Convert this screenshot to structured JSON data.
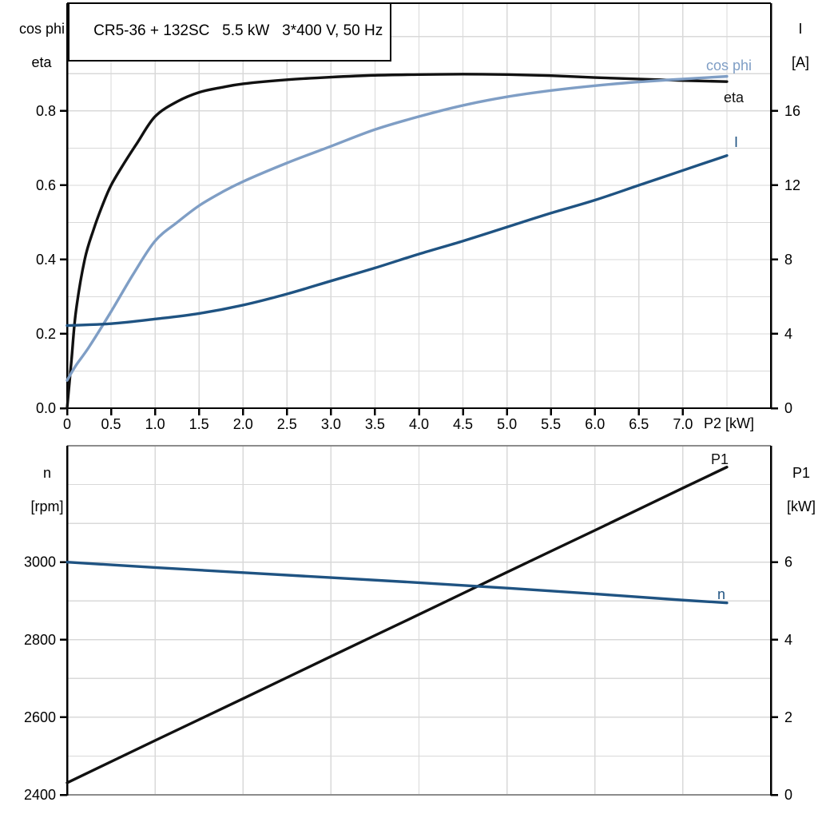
{
  "colors": {
    "black_curve": "#111111",
    "dark_blue": "#1f5382",
    "light_blue": "#7f9ec5",
    "grid": "#d9d9d9",
    "gray_frame": "#8c8c8c",
    "axis": "#000000"
  },
  "chart_data": [
    {
      "id": "upper",
      "type": "line",
      "title": "CR5-36 + 132SC   5.5 kW   3*400 V, 50 Hz",
      "xlabel": "P2 [kW]",
      "xlim": [
        0,
        8
      ],
      "grid_x_step": 0.5,
      "grid": true,
      "x_ticks": [
        0,
        0.5,
        1,
        1.5,
        2,
        2.5,
        3,
        3.5,
        4,
        4.5,
        5,
        5.5,
        6,
        6.5,
        7
      ],
      "x_tick_labels": [
        "0",
        "0.5",
        "1.0",
        "1.5",
        "2.0",
        "2.5",
        "3.0",
        "3.5",
        "4.0",
        "4.5",
        "5.0",
        "5.5",
        "6.0",
        "6.5",
        "7.0"
      ],
      "left_axis": {
        "header": [
          "cos phi",
          "eta"
        ],
        "lim": [
          0,
          1.09
        ],
        "grid_step": 0.1,
        "ticks": [
          0,
          0.2,
          0.4,
          0.6,
          0.8
        ],
        "tick_labels": [
          "0.0",
          "0.2",
          "0.4",
          "0.6",
          "0.8"
        ]
      },
      "right_axis": {
        "header": [
          "I",
          "[A]"
        ],
        "lim": [
          0,
          21.8
        ],
        "ticks": [
          0,
          4,
          8,
          12,
          16
        ],
        "tick_labels": [
          "0",
          "4",
          "8",
          "12",
          "16"
        ]
      },
      "series": [
        {
          "name": "eta",
          "axis": "left",
          "color_key": "black_curve",
          "x": [
            0,
            0.05,
            0.1,
            0.2,
            0.3,
            0.4,
            0.5,
            0.65,
            0.8,
            1.0,
            1.25,
            1.5,
            1.75,
            2.0,
            2.5,
            3.0,
            3.5,
            4.0,
            4.5,
            5.0,
            5.5,
            6.0,
            6.5,
            7.0,
            7.5
          ],
          "y": [
            0,
            0.13,
            0.26,
            0.4,
            0.48,
            0.545,
            0.6,
            0.66,
            0.715,
            0.785,
            0.825,
            0.85,
            0.863,
            0.873,
            0.884,
            0.891,
            0.896,
            0.898,
            0.899,
            0.898,
            0.895,
            0.89,
            0.886,
            0.882,
            0.879
          ]
        },
        {
          "name": "cos phi",
          "axis": "left",
          "color_key": "light_blue",
          "x": [
            0,
            0.1,
            0.25,
            0.5,
            0.75,
            1.0,
            1.25,
            1.5,
            1.75,
            2.0,
            2.5,
            3.0,
            3.5,
            4.0,
            4.5,
            5.0,
            5.5,
            6.0,
            6.5,
            7.0,
            7.5
          ],
          "y": [
            0.075,
            0.115,
            0.165,
            0.26,
            0.36,
            0.45,
            0.5,
            0.545,
            0.58,
            0.61,
            0.66,
            0.705,
            0.75,
            0.785,
            0.815,
            0.838,
            0.855,
            0.868,
            0.878,
            0.886,
            0.893
          ]
        },
        {
          "name": "I",
          "axis": "right",
          "color_key": "dark_blue",
          "x": [
            0,
            0.5,
            1.0,
            1.5,
            2.0,
            2.5,
            3.0,
            3.5,
            4.0,
            4.5,
            5.0,
            5.5,
            6.0,
            6.5,
            7.0,
            7.5
          ],
          "y": [
            4.45,
            4.55,
            4.8,
            5.1,
            5.55,
            6.15,
            6.85,
            7.55,
            8.3,
            9.0,
            9.75,
            10.5,
            11.2,
            12.0,
            12.8,
            13.6
          ]
        }
      ],
      "curve_labels": [
        {
          "text": "cos phi",
          "color_key": "light_blue",
          "x": 884,
          "y": 88
        },
        {
          "text": "eta",
          "color_key": "black_curve",
          "x": 906,
          "y": 128
        },
        {
          "text": "I",
          "color_key": "dark_blue",
          "x": 919,
          "y": 184
        }
      ]
    },
    {
      "id": "lower",
      "type": "line",
      "title": "",
      "xlabel": "",
      "xlim": [
        0,
        8
      ],
      "grid_x_step": 1.0,
      "grid": true,
      "x_ticks": [],
      "x_tick_labels": [],
      "left_axis": {
        "header": [
          "n",
          "[rpm]"
        ],
        "lim": [
          2400,
          3300
        ],
        "grid_step": 100,
        "ticks": [
          2400,
          2600,
          2800,
          3000
        ],
        "tick_labels": [
          "2400",
          "2600",
          "2800",
          "3000"
        ]
      },
      "right_axis": {
        "header": [
          "P1",
          "[kW]"
        ],
        "lim": [
          0,
          9
        ],
        "ticks": [
          0,
          2,
          4,
          6
        ],
        "tick_labels": [
          "0",
          "2",
          "4",
          "6"
        ]
      },
      "series": [
        {
          "name": "P1",
          "axis": "right",
          "color_key": "black_curve",
          "x": [
            0,
            1,
            2,
            3,
            4,
            5,
            6,
            7,
            7.5
          ],
          "y": [
            0.31,
            1.4,
            2.48,
            3.57,
            4.65,
            5.74,
            6.82,
            7.91,
            8.45
          ]
        },
        {
          "name": "n",
          "axis": "left",
          "color_key": "dark_blue",
          "x": [
            0,
            1,
            2,
            3,
            4,
            5,
            6,
            7,
            7.5
          ],
          "y": [
            3000,
            2986,
            2973,
            2960,
            2947,
            2933,
            2918,
            2902,
            2895
          ]
        }
      ],
      "curve_labels": [
        {
          "text": "P1",
          "color_key": "black_curve",
          "x": 890,
          "y": 581
        },
        {
          "text": "n",
          "color_key": "dark_blue",
          "x": 898,
          "y": 750
        }
      ]
    }
  ]
}
